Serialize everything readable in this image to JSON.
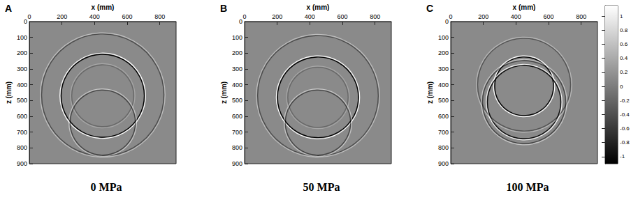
{
  "chart_data": [
    {
      "type": "wavefield",
      "label": "A",
      "title": "0 MPa",
      "xlabel": "x (mm)",
      "ylabel": "z (mm)",
      "xlim": [
        0,
        900
      ],
      "xticks": [
        0,
        200,
        400,
        600,
        800
      ],
      "ylim": [
        0,
        900
      ],
      "yticks": [
        0,
        100,
        200,
        300,
        400,
        500,
        600,
        700,
        800,
        900
      ],
      "wavefronts": {
        "cx": [
          450,
          450,
          450,
          450
        ],
        "cz": [
          470,
          465,
          470,
          640
        ],
        "r": [
          255,
          375,
          190,
          200
        ],
        "amplitude": [
          1,
          0.45,
          0.25,
          0.5
        ]
      }
    },
    {
      "type": "wavefield",
      "label": "B",
      "title": "50 MPa",
      "xlabel": "x (mm)",
      "ylabel": "z (mm)",
      "xlim": [
        0,
        900
      ],
      "xticks": [
        0,
        200,
        400,
        600,
        800
      ],
      "ylim": [
        0,
        900
      ],
      "yticks": [
        0,
        100,
        200,
        300,
        400,
        500,
        600,
        700,
        800,
        900
      ],
      "wavefronts": {
        "cx": [
          450,
          450,
          450,
          450
        ],
        "cz": [
          480,
          470,
          480,
          640
        ],
        "r": [
          248,
          370,
          185,
          200
        ],
        "amplitude": [
          1,
          0.45,
          0.25,
          0.5
        ]
      }
    },
    {
      "type": "wavefield",
      "label": "C",
      "title": "100 MPa",
      "xlabel": "x (mm)",
      "ylabel": "z (mm)",
      "xlim": [
        0,
        900
      ],
      "xticks": [
        0,
        200,
        400,
        600,
        800
      ],
      "ylim": [
        0,
        900
      ],
      "yticks": [
        0,
        100,
        200,
        300,
        400,
        500,
        600,
        700,
        800,
        900
      ],
      "wavefronts": {
        "cx": [
          450,
          450,
          450,
          450
        ],
        "cz": [
          410,
          510,
          400,
          510
        ],
        "r": [
          180,
          225,
          285,
          255
        ],
        "amplitude": [
          1,
          0.9,
          0.4,
          0.5
        ]
      }
    }
  ],
  "colorbar": {
    "range": [
      -1.1,
      1.15
    ],
    "ticks": [
      -1,
      -0.8,
      -0.6,
      -0.4,
      -0.2,
      0,
      0.2,
      0.4,
      0.6,
      0.8,
      1
    ]
  }
}
